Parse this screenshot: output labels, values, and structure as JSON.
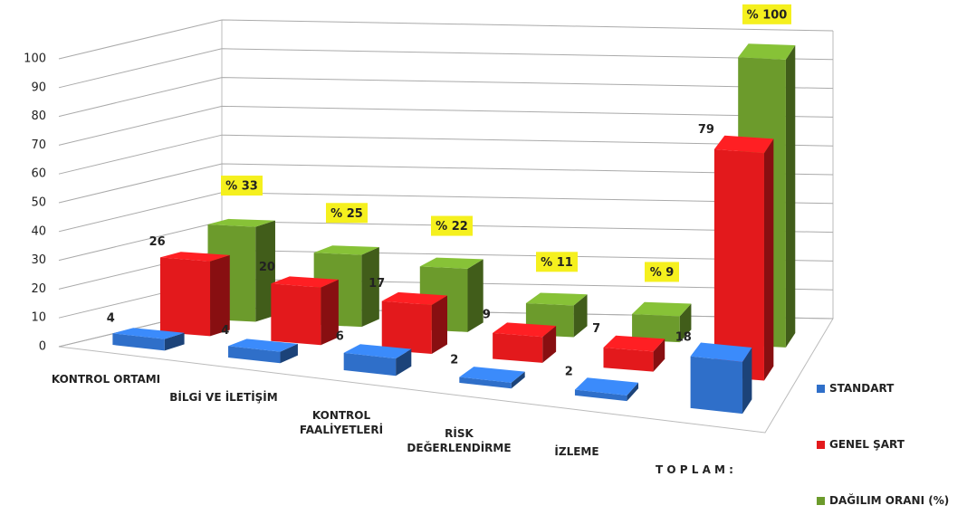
{
  "chart_data": {
    "type": "bar3d",
    "categories": [
      "KONTROL ORTAMI",
      "BİLGİ VE İLETİŞİM",
      "KONTROL FAALİYETLERİ",
      "RİSK DEĞERLENDİRME",
      "İZLEME",
      "T O P L A M :"
    ],
    "series": [
      {
        "name": "STANDART",
        "color": "#2f6fc9",
        "values": [
          4,
          4,
          6,
          2,
          2,
          18
        ]
      },
      {
        "name": "GENEL ŞART",
        "color": "#e3191c",
        "values": [
          26,
          20,
          17,
          9,
          7,
          79
        ]
      },
      {
        "name": "DAĞILIM  ORANI (%)",
        "color": "#6c9b2c",
        "values": [
          33,
          25,
          22,
          11,
          9,
          100
        ],
        "value_labels": [
          "% 33",
          "% 25",
          "% 22",
          "% 11",
          "% 9",
          "% 100"
        ]
      }
    ],
    "ylim": [
      0,
      100
    ],
    "yticks": [
      0,
      10,
      20,
      30,
      40,
      50,
      60,
      70,
      80,
      90,
      100
    ],
    "grid": true
  }
}
